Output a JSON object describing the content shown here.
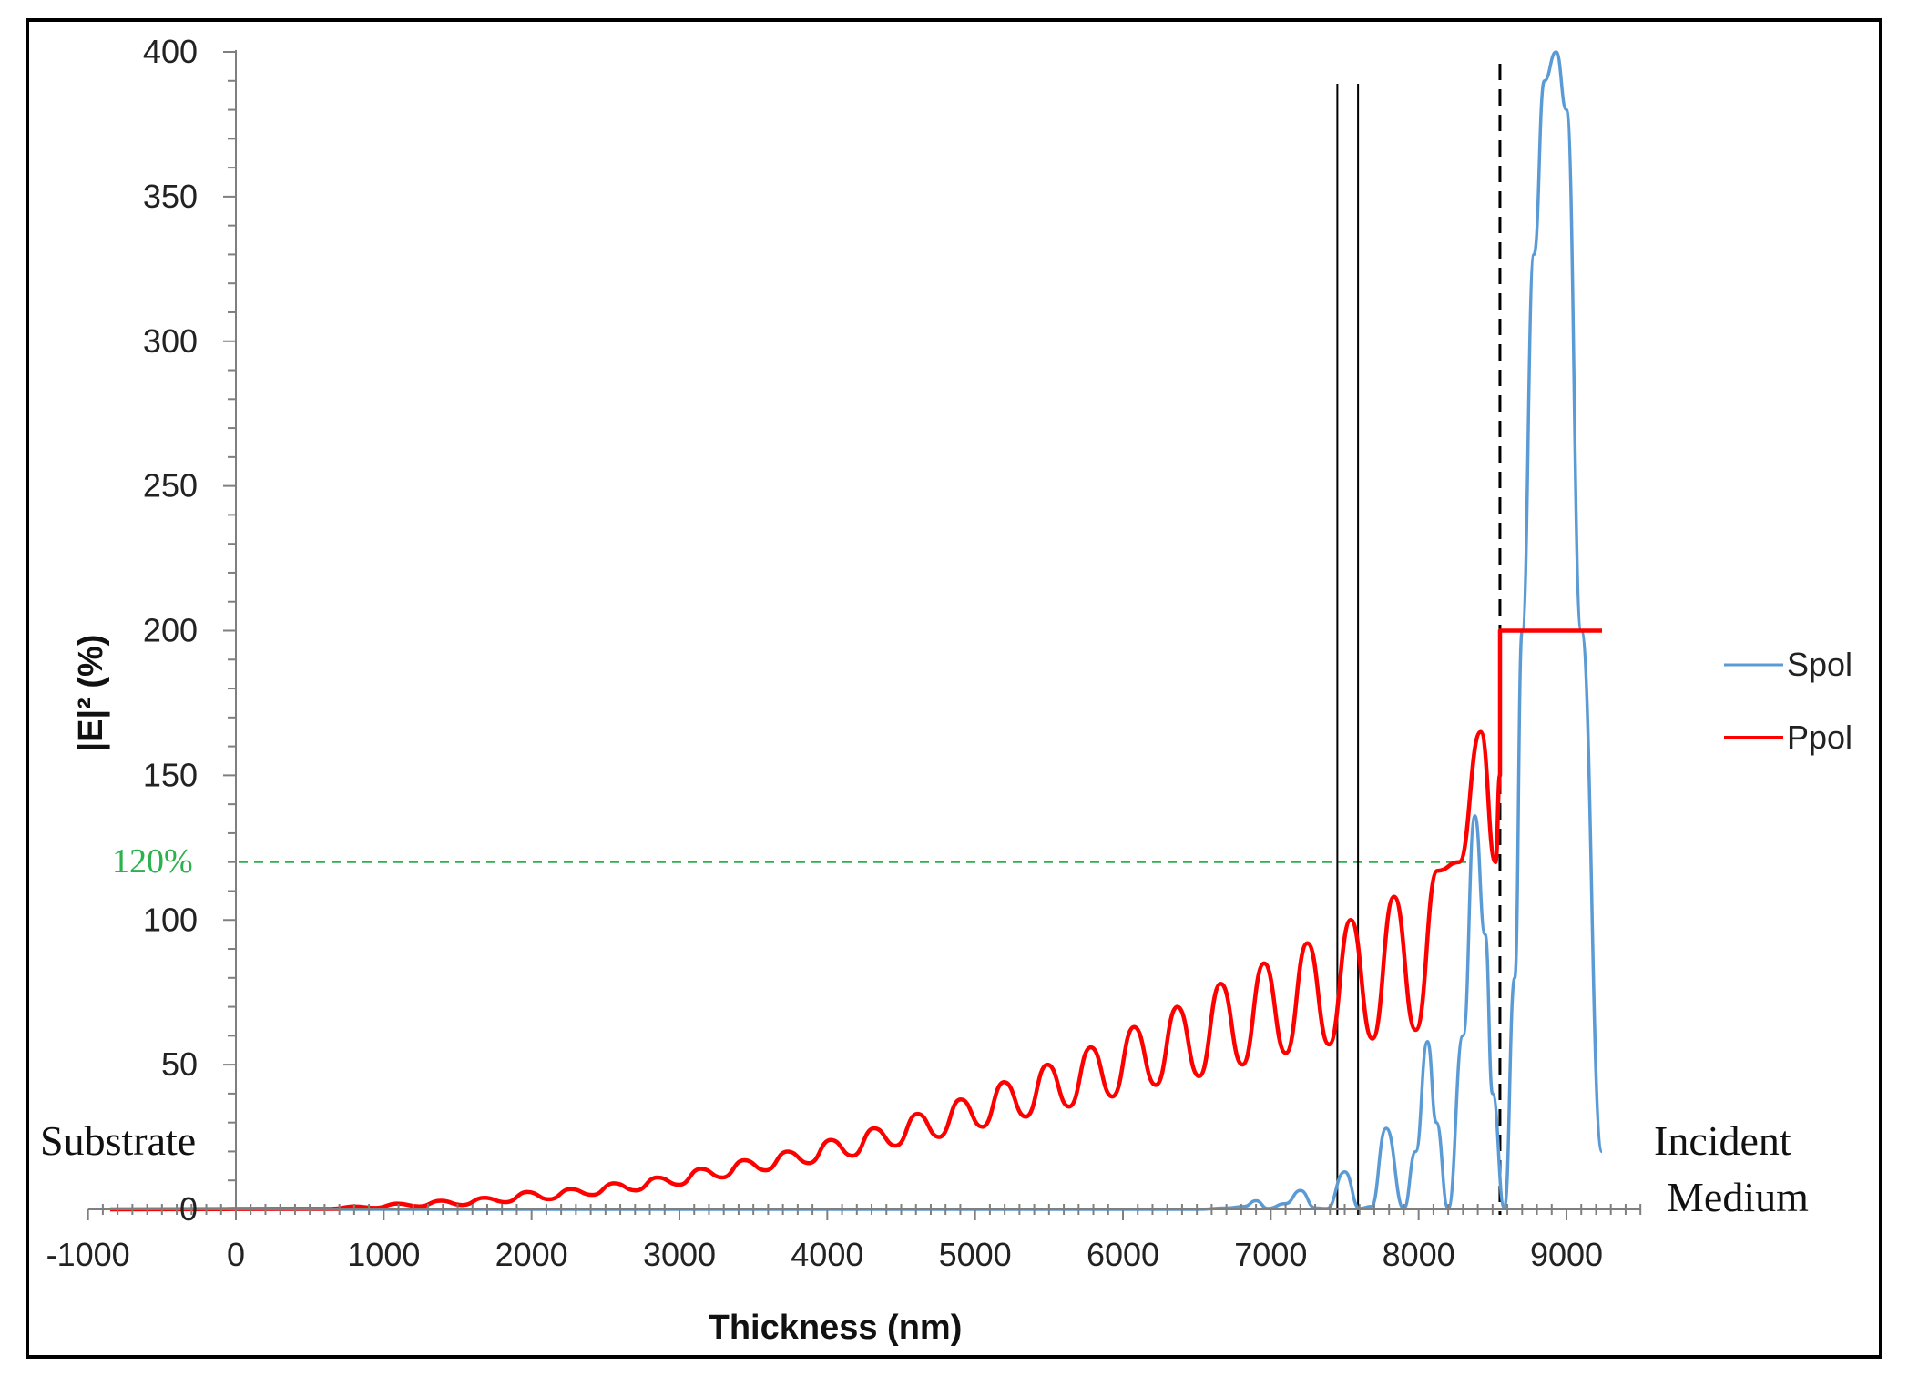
{
  "chart_data": {
    "type": "line",
    "title": "",
    "xlabel": "Thickness (nm)",
    "ylabel": "|E|² (%)",
    "xlim": [
      -1000,
      9500
    ],
    "ylim": [
      0,
      400
    ],
    "x_ticks": [
      -1000,
      0,
      1000,
      2000,
      3000,
      4000,
      5000,
      6000,
      7000,
      8000,
      9000
    ],
    "y_ticks": [
      0,
      50,
      100,
      150,
      200,
      250,
      300,
      350,
      400
    ],
    "grid": false,
    "legend": "right",
    "series": [
      {
        "name": "Spol",
        "color": "#5b9bd5",
        "x": [
          -850,
          6500,
          6700,
          6820,
          6900,
          6980,
          7100,
          7200,
          7300,
          7380,
          7500,
          7600,
          7680,
          7780,
          7900,
          7980,
          8060,
          8120,
          8200,
          8300,
          8380,
          8450,
          8500,
          8580,
          8650,
          8700,
          8780,
          8850,
          8930,
          9000,
          9100,
          9240
        ],
        "y": [
          0,
          0,
          0.5,
          1,
          3,
          0.3,
          2,
          6.5,
          0.5,
          0.3,
          13,
          0.3,
          1,
          28,
          0.3,
          20,
          58,
          30,
          0.3,
          60,
          136,
          95,
          40,
          0.5,
          80,
          200,
          330,
          390,
          400,
          380,
          200,
          20
        ]
      },
      {
        "name": "Ppol",
        "color": "#ff0000",
        "x": [
          -850,
          500,
          1000,
          1300,
          1600,
          1900,
          2200,
          2500,
          2800,
          3000,
          3300,
          3600,
          3900,
          4100,
          4400,
          4700,
          5000,
          5250,
          5550,
          5800,
          6100,
          6400,
          6650,
          6950,
          7200,
          7500,
          7800,
          8050,
          8250,
          8400,
          8550,
          8550,
          9240
        ],
        "y": [
          0,
          0.2,
          0.5,
          1,
          2,
          3,
          4,
          6,
          7,
          10,
          13,
          17,
          20,
          23,
          28,
          32,
          38,
          44,
          50,
          56,
          63,
          70,
          78,
          85,
          92,
          100,
          108,
          117,
          130,
          165,
          150,
          200,
          200
        ],
        "peaks": [
          1,
          2,
          3,
          4,
          6,
          7,
          9,
          11,
          14,
          17,
          20,
          24,
          28,
          33,
          38,
          44,
          50,
          56,
          63,
          70,
          78,
          85,
          92,
          100,
          108,
          117,
          165
        ],
        "troughs": [
          0.2,
          0.5,
          1,
          1.5,
          2.5,
          3.5,
          5,
          6.5,
          8.5,
          11,
          13.5,
          16,
          18.5,
          22,
          25,
          28.5,
          32,
          35.5,
          39,
          43,
          46,
          50,
          54,
          57,
          59,
          62,
          120
        ]
      }
    ],
    "annotations": {
      "substrate": "Substrate",
      "incident": [
        "Incident",
        "Medium"
      ],
      "percent_label": "120%",
      "percent_value": 120,
      "percent_color": "#2bb24c",
      "vertical_lines": [
        7450,
        7590
      ],
      "dashed_line": 8550
    }
  }
}
